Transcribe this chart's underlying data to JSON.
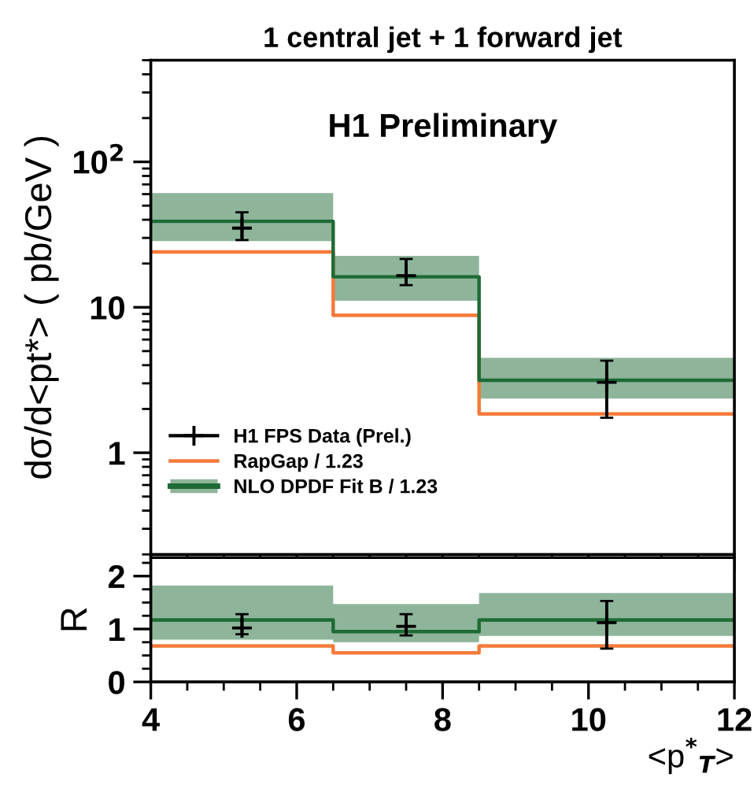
{
  "chart_data": [
    {
      "type": "step",
      "title": "1 central jet + 1 forward jet",
      "ylabel": "dσ/d<pt*> ( pb/GeV )",
      "annotations": [
        "H1 Preliminary"
      ],
      "log": "y",
      "xlim": [
        4,
        12
      ],
      "xticks": [
        4,
        6,
        8,
        10,
        12
      ],
      "ylim": [
        0.2,
        500
      ],
      "yticks": [
        1,
        10,
        {
          "value": 100,
          "label": "10$^{2}$"
        }
      ],
      "tick_labels": "y",
      "legend": "bottom left",
      "grid": false,
      "series": [
        {
          "name": "H1 FPS Data (Prel.)",
          "type": "scatter",
          "marker": "cross",
          "color": "#000000",
          "x": [
            5.25,
            7.5,
            10.25
          ],
          "values": [
            35,
            16.5,
            3.05
          ],
          "errors": [
            [
              29,
              45
            ],
            [
              14.2,
              21.5
            ],
            [
              1.74,
              4.3
            ]
          ]
        },
        {
          "name": "RapGap / 1.23",
          "color": "#f47a3a",
          "x": [
            4,
            6.5,
            8.5,
            12
          ],
          "values": [
            24,
            8.8,
            1.85,
            1.85
          ]
        },
        {
          "name": "NLO DPDF Fit B / 1.23",
          "color": "#1e6b35",
          "x": [
            4,
            6.5,
            8.5,
            12
          ],
          "values": [
            39,
            16.2,
            3.15,
            3.15
          ],
          "lower": [
            28.5,
            11.1,
            2.36,
            2.36
          ],
          "upper": [
            61,
            22.6,
            4.5,
            4.5
          ]
        }
      ]
    },
    {
      "type": "step",
      "xlabel": "<p$^{*}$$_{T}$>",
      "ylabel": "R",
      "xlim": [
        4,
        12
      ],
      "xticks": [
        4,
        6,
        8,
        10,
        12
      ],
      "ylim": [
        0,
        2.35
      ],
      "yticks": [
        0,
        1,
        2
      ],
      "grid": false,
      "series": [
        {
          "type": "scatter",
          "marker": "cross",
          "color": "#000000",
          "x": [
            5.25,
            7.5,
            10.25
          ],
          "values": [
            1.02,
            1.05,
            1.12
          ],
          "errors": [
            [
              0.9,
              1.28
            ],
            [
              0.88,
              1.28
            ],
            [
              0.63,
              1.53
            ]
          ]
        },
        {
          "color": "#f47a3a",
          "x": [
            4,
            6.5,
            8.5,
            12
          ],
          "values": [
            0.68,
            0.55,
            0.68,
            0.68
          ]
        },
        {
          "color": "#1e6b35",
          "x": [
            4,
            6.5,
            8.5,
            12
          ],
          "values": [
            1.17,
            0.95,
            1.17,
            1.17
          ],
          "lower": [
            0.8,
            0.75,
            0.87,
            0.87
          ],
          "upper": [
            1.82,
            1.47,
            1.68,
            1.68
          ]
        }
      ]
    }
  ]
}
